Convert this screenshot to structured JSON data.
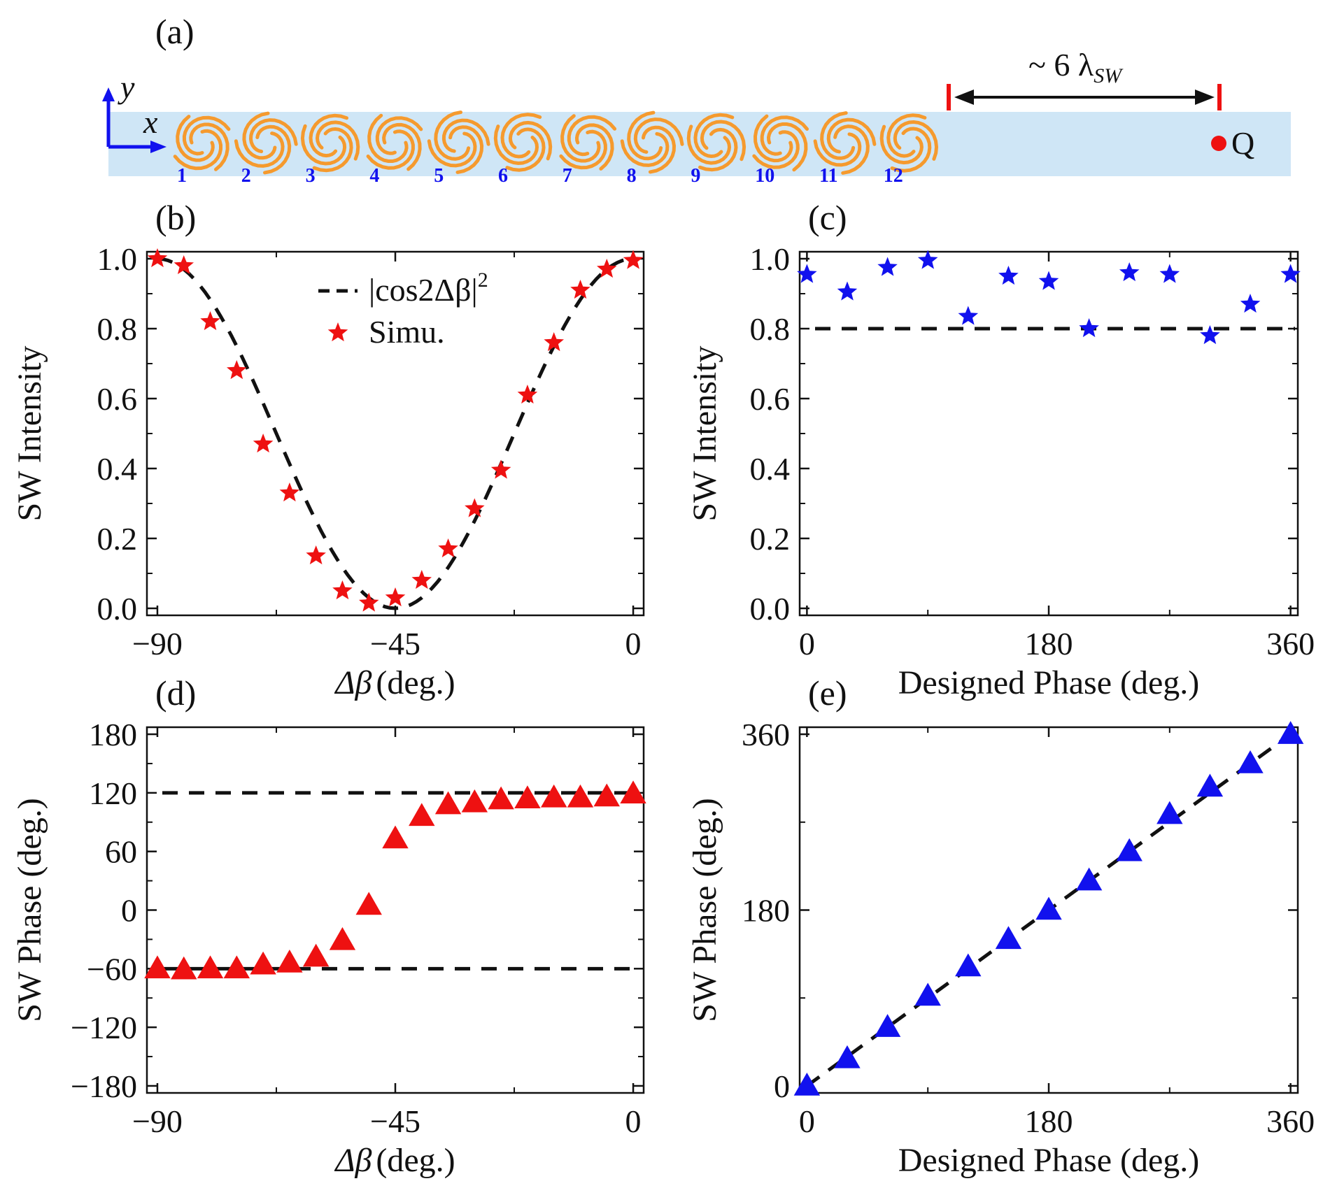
{
  "colors": {
    "red": "#ee1111",
    "blue": "#1111ee",
    "black": "#111111",
    "orange": "#f59a2e",
    "strip": "#cfe6f6"
  },
  "panel_a": {
    "label": "(a)",
    "axis_y": "y",
    "axis_x": "x",
    "distance_label": "~ 6 λ",
    "distance_sub": "SW",
    "point_label": "Q",
    "element_numbers": [
      "1",
      "2",
      "3",
      "4",
      "5",
      "6",
      "7",
      "8",
      "9",
      "10",
      "11",
      "12"
    ]
  },
  "chart_data": [
    {
      "id": "b",
      "label": "(b)",
      "type": "scatter",
      "xlabel_sym": "Δβ",
      "xlabel": "(deg.)",
      "ylabel": "SW Intensity",
      "xlim": [
        -90,
        0
      ],
      "ylim": [
        0,
        1.0
      ],
      "xticks": [
        -90,
        -45,
        0
      ],
      "xtick_labels": [
        "−90",
        "−45",
        "0"
      ],
      "yticks": [
        0,
        0.2,
        0.4,
        0.6,
        0.8,
        1.0
      ],
      "ytick_labels": [
        "0.0",
        "0.2",
        "0.4",
        "0.6",
        "0.8",
        "1.0"
      ],
      "legend": {
        "fit_label": "|cos2Δβ|",
        "fit_sup": "2",
        "marker_label": "Simu.",
        "position": "top-center"
      },
      "fit": {
        "style": "dashed",
        "color": "black",
        "formula": "cos2(2*dbeta)"
      },
      "series": [
        {
          "name": "Simu.",
          "marker": "star",
          "color": "red",
          "x": [
            -90,
            -85,
            -80,
            -75,
            -70,
            -65,
            -60,
            -55,
            -50,
            -45,
            -40,
            -35,
            -30,
            -25,
            -20,
            -15,
            -10,
            -5,
            0
          ],
          "y": [
            1.0,
            0.98,
            0.82,
            0.68,
            0.47,
            0.33,
            0.15,
            0.05,
            0.015,
            0.03,
            0.08,
            0.17,
            0.285,
            0.395,
            0.61,
            0.76,
            0.91,
            0.97,
            0.995
          ]
        }
      ]
    },
    {
      "id": "c",
      "label": "(c)",
      "type": "scatter",
      "xlabel": "Designed Phase (deg.)",
      "ylabel": "SW Intensity",
      "xlim": [
        0,
        360
      ],
      "ylim": [
        0,
        1.0
      ],
      "xticks": [
        0,
        180,
        360
      ],
      "xtick_labels": [
        "0",
        "180",
        "360"
      ],
      "yticks": [
        0,
        0.2,
        0.4,
        0.6,
        0.8,
        1.0
      ],
      "ytick_labels": [
        "0.0",
        "0.2",
        "0.4",
        "0.6",
        "0.8",
        "1.0"
      ],
      "reference_lines": [
        0.8
      ],
      "series": [
        {
          "name": "intensity",
          "marker": "star",
          "color": "blue",
          "x": [
            0,
            30,
            60,
            90,
            120,
            150,
            180,
            210,
            240,
            270,
            300,
            330,
            360
          ],
          "y": [
            0.955,
            0.905,
            0.975,
            0.995,
            0.835,
            0.95,
            0.935,
            0.8,
            0.96,
            0.955,
            0.78,
            0.87,
            0.955
          ]
        }
      ]
    },
    {
      "id": "d",
      "label": "(d)",
      "type": "scatter",
      "xlabel_sym": "Δβ",
      "xlabel": "(deg.)",
      "ylabel": "SW Phase (deg.)",
      "xlim": [
        -90,
        0
      ],
      "ylim": [
        -180,
        180
      ],
      "xticks": [
        -90,
        -45,
        0
      ],
      "xtick_labels": [
        "−90",
        "−45",
        "0"
      ],
      "yticks": [
        -180,
        -120,
        -60,
        0,
        60,
        120,
        180
      ],
      "ytick_labels": [
        "−180",
        "−120",
        "−60",
        "0",
        "60",
        "120",
        "180"
      ],
      "reference_lines": [
        120,
        -60
      ],
      "series": [
        {
          "name": "phase",
          "marker": "triangle",
          "color": "red",
          "x": [
            -90,
            -85,
            -80,
            -75,
            -70,
            -65,
            -60,
            -55,
            -50,
            -45,
            -40,
            -35,
            -30,
            -25,
            -20,
            -15,
            -10,
            -5,
            0
          ],
          "y": [
            -60,
            -61,
            -60,
            -60,
            -56,
            -54,
            -48,
            -31,
            5,
            73,
            96,
            108,
            110,
            113,
            114,
            115,
            115,
            116,
            119
          ]
        }
      ]
    },
    {
      "id": "e",
      "label": "(e)",
      "type": "scatter",
      "xlabel": "Designed Phase (deg.)",
      "ylabel": "SW Phase (deg.)",
      "xlim": [
        0,
        360
      ],
      "ylim": [
        0,
        360
      ],
      "xticks": [
        0,
        180,
        360
      ],
      "xtick_labels": [
        "0",
        "180",
        "360"
      ],
      "yticks": [
        0,
        180,
        360
      ],
      "ytick_labels": [
        "0",
        "180",
        "360"
      ],
      "fit": {
        "style": "dashed",
        "color": "black",
        "formula": "y = x"
      },
      "series": [
        {
          "name": "phase",
          "marker": "triangle",
          "color": "blue",
          "x": [
            0,
            30,
            60,
            90,
            120,
            150,
            180,
            210,
            240,
            270,
            300,
            330,
            360
          ],
          "y": [
            0,
            28,
            60,
            92,
            122,
            150,
            180,
            210,
            240,
            278,
            306,
            330,
            360
          ]
        }
      ]
    }
  ]
}
